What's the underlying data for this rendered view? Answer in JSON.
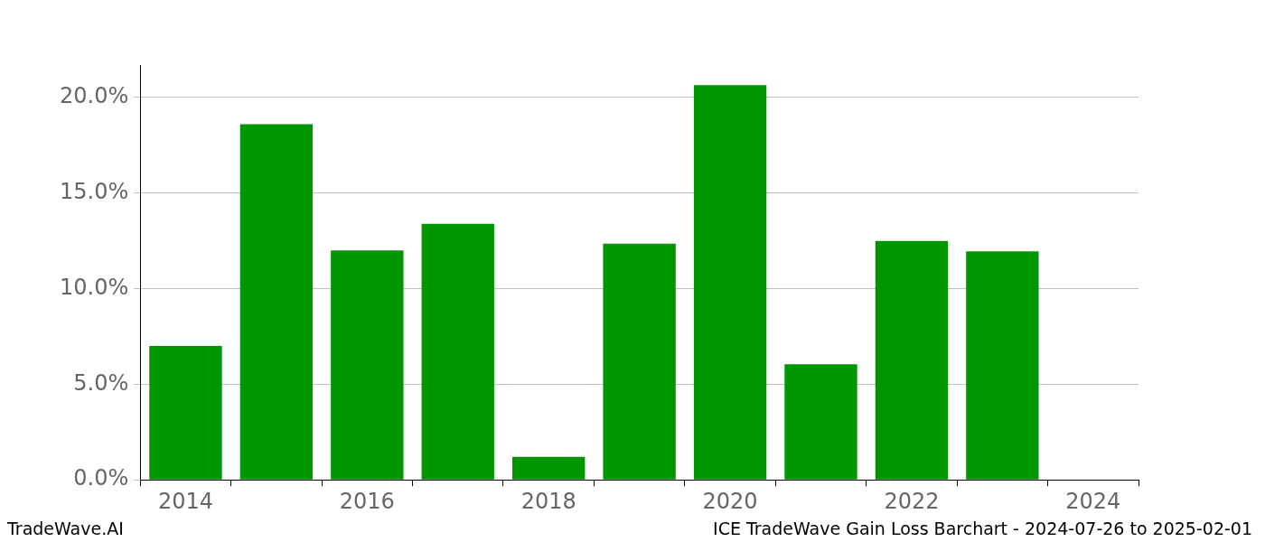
{
  "chart_data": {
    "type": "bar",
    "categories": [
      "2014",
      null,
      "2016",
      null,
      "2018",
      null,
      "2020",
      null,
      "2022",
      null,
      "2024"
    ],
    "values": [
      7.0,
      18.6,
      12.0,
      13.4,
      1.2,
      12.35,
      20.65,
      6.05,
      12.5,
      11.95,
      null
    ],
    "color": "#009600",
    "ylim": [
      0,
      21.7
    ],
    "yticks": [
      {
        "value": 0,
        "label": "0.0%"
      },
      {
        "value": 5,
        "label": "5.0%"
      },
      {
        "value": 10,
        "label": "10.0%"
      },
      {
        "value": 15,
        "label": "15.0%"
      },
      {
        "value": 20,
        "label": "20.0%"
      }
    ],
    "grid": true
  },
  "footer": {
    "left": "TradeWave.AI",
    "right": "ICE TradeWave Gain Loss Barchart - 2024-07-26 to 2025-02-01"
  }
}
